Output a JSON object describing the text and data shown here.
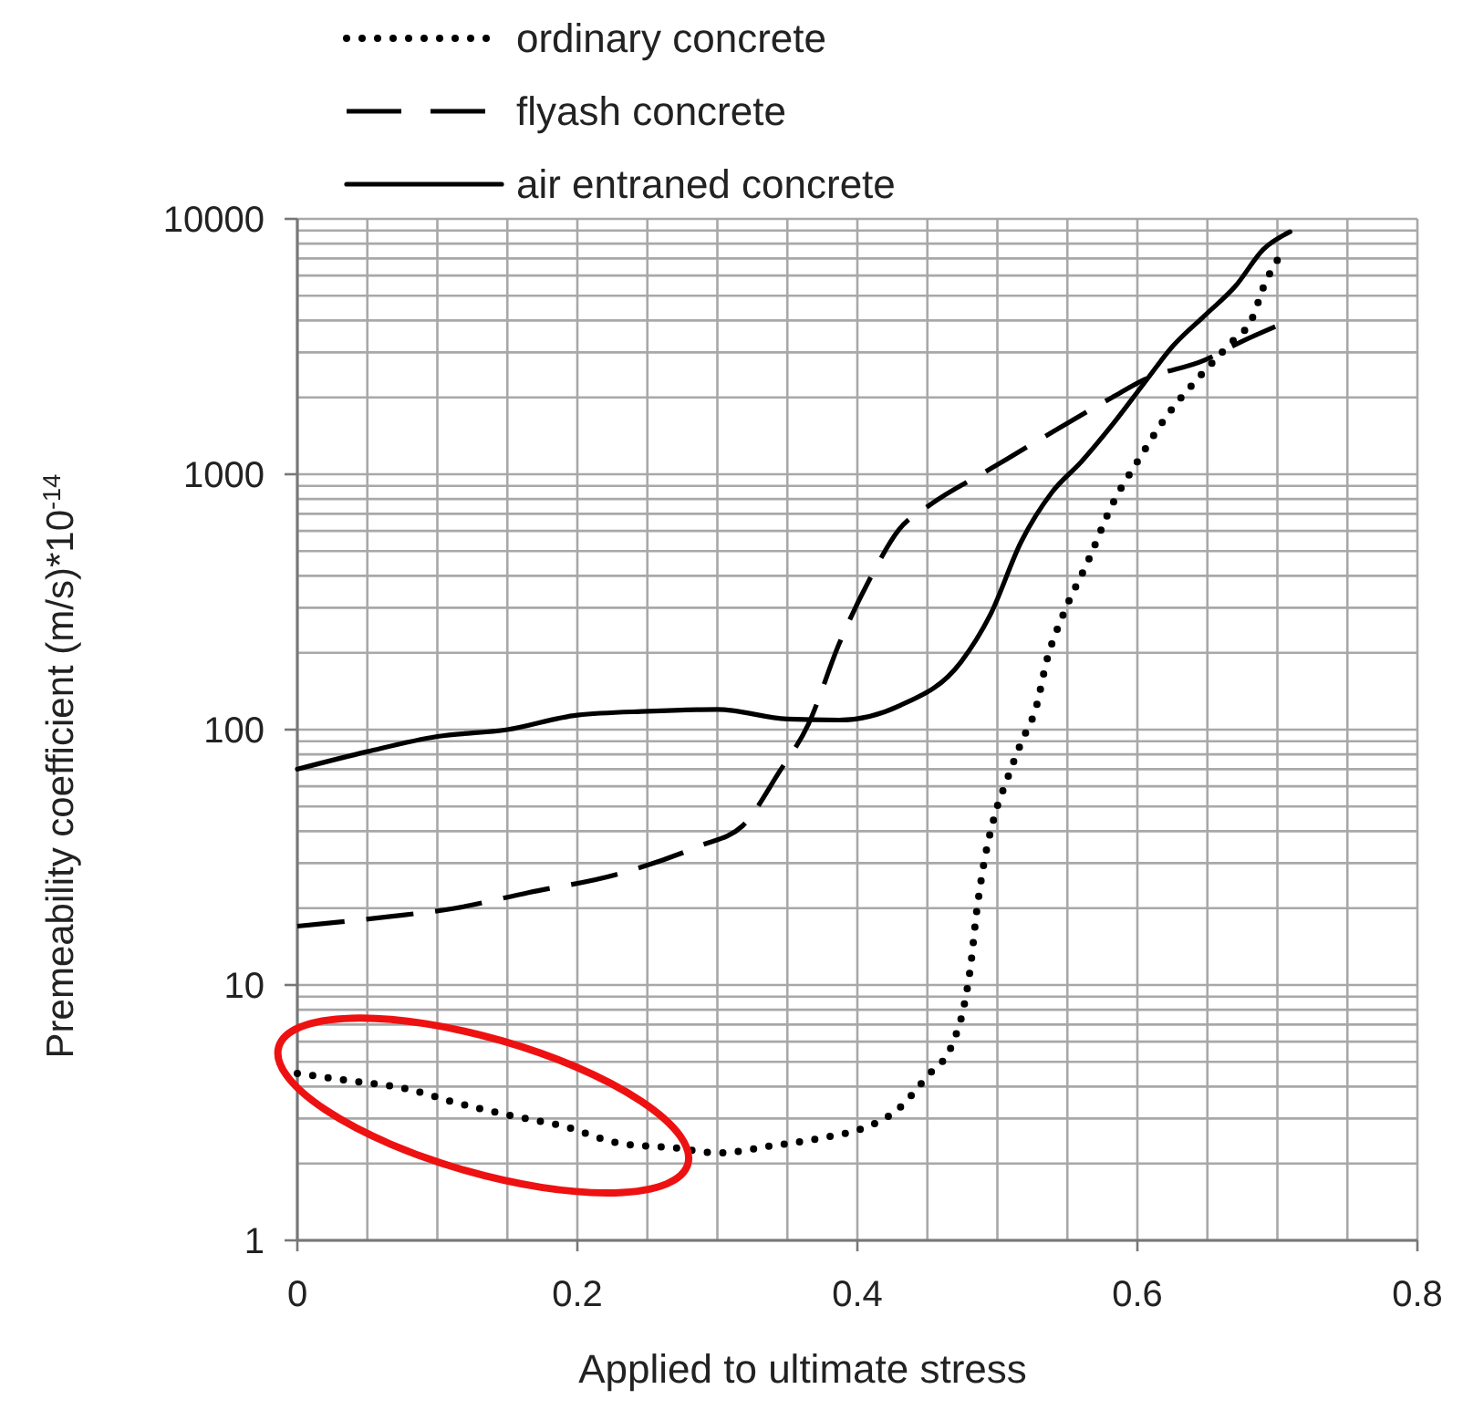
{
  "chart_data": {
    "type": "line",
    "xlabel": "Applied to ultimate stress",
    "ylabel": "Premeability coefficient (m/s)*10$^{-14}$",
    "log": "y",
    "grid": true,
    "legend": "top",
    "xlim": [
      0,
      0.8
    ],
    "ylim": [
      1,
      10000
    ],
    "xticks": [
      0,
      {
        "value": 0.05,
        "label": null
      },
      {
        "value": 0.1,
        "label": null
      },
      {
        "value": 0.15,
        "label": null
      },
      0.2,
      {
        "value": 0.25,
        "label": null
      },
      {
        "value": 0.3,
        "label": null
      },
      {
        "value": 0.35,
        "label": null
      },
      0.4,
      {
        "value": 0.45,
        "label": null
      },
      {
        "value": 0.5,
        "label": null
      },
      {
        "value": 0.55,
        "label": null
      },
      0.6,
      {
        "value": 0.65,
        "label": null
      },
      {
        "value": 0.7,
        "label": null
      },
      {
        "value": 0.75,
        "label": null
      },
      0.8
    ],
    "yticks": [
      1,
      {
        "value": 2,
        "label": null
      },
      {
        "value": 3,
        "label": null
      },
      {
        "value": 4,
        "label": null
      },
      {
        "value": 5,
        "label": null
      },
      {
        "value": 6,
        "label": null
      },
      {
        "value": 7,
        "label": null
      },
      {
        "value": 8,
        "label": null
      },
      {
        "value": 9,
        "label": null
      },
      10,
      {
        "value": 20,
        "label": null
      },
      {
        "value": 30,
        "label": null
      },
      {
        "value": 40,
        "label": null
      },
      {
        "value": 50,
        "label": null
      },
      {
        "value": 60,
        "label": null
      },
      {
        "value": 70,
        "label": null
      },
      {
        "value": 80,
        "label": null
      },
      {
        "value": 90,
        "label": null
      },
      100,
      {
        "value": 200,
        "label": null
      },
      {
        "value": 300,
        "label": null
      },
      {
        "value": 400,
        "label": null
      },
      {
        "value": 500,
        "label": null
      },
      {
        "value": 600,
        "label": null
      },
      {
        "value": 700,
        "label": null
      },
      {
        "value": 800,
        "label": null
      },
      {
        "value": 900,
        "label": null
      },
      1000,
      {
        "value": 2000,
        "label": null
      },
      {
        "value": 3000,
        "label": null
      },
      {
        "value": 4000,
        "label": null
      },
      {
        "value": 5000,
        "label": null
      },
      {
        "value": 6000,
        "label": null
      },
      {
        "value": 7000,
        "label": null
      },
      {
        "value": 8000,
        "label": null
      },
      {
        "value": 9000,
        "label": null
      },
      10000
    ],
    "series": [
      {
        "name": "ordinary concrete",
        "color": "#000000",
        "line_style": "dotted",
        "x": [
          0,
          0.04,
          0.08,
          0.11,
          0.15,
          0.19,
          0.23,
          0.27,
          0.3,
          0.34,
          0.38,
          0.4,
          0.43,
          0.45,
          0.468,
          0.476,
          0.481,
          0.485,
          0.489,
          0.498,
          0.507,
          0.517,
          0.528,
          0.535,
          0.547,
          0.565,
          0.582,
          0.6,
          0.622,
          0.644,
          0.665,
          0.683,
          0.69,
          0.7
        ],
        "values": [
          4.5,
          4.2,
          3.9,
          3.5,
          3.1,
          2.8,
          2.4,
          2.3,
          2.2,
          2.35,
          2.55,
          2.7,
          3.3,
          4.4,
          5.9,
          8.2,
          12,
          19,
          27,
          46,
          64,
          89,
          124,
          184,
          282,
          460,
          760,
          1120,
          1720,
          2400,
          3200,
          4200,
          5400,
          6900
        ]
      },
      {
        "name": "flyash concrete",
        "color": "#000000",
        "line_style": "dashed",
        "x": [
          0,
          0.065,
          0.113,
          0.165,
          0.227,
          0.287,
          0.318,
          0.344,
          0.365,
          0.387,
          0.409,
          0.43,
          0.452,
          0.495,
          0.539,
          0.582,
          0.605,
          0.648,
          0.674,
          0.704
        ],
        "values": [
          17,
          18.5,
          20,
          23,
          27,
          35,
          42,
          68,
          105,
          217,
          390,
          610,
          760,
          1050,
          1460,
          2000,
          2350,
          2800,
          3300,
          3900
        ]
      },
      {
        "name": "air entraned concrete",
        "color": "#000000",
        "line_style": "solid",
        "x": [
          0,
          0.05,
          0.1,
          0.15,
          0.2,
          0.25,
          0.3,
          0.35,
          0.387,
          0.43,
          0.474,
          0.495,
          0.517,
          0.539,
          0.56,
          0.582,
          0.605,
          0.625,
          0.648,
          0.67,
          0.69,
          0.709
        ],
        "values": [
          70,
          82,
          94,
          100,
          114,
          118,
          120,
          110,
          109,
          124,
          184,
          282,
          544,
          850,
          1120,
          1560,
          2280,
          3160,
          4180,
          5450,
          7600,
          8900
        ]
      }
    ]
  }
}
